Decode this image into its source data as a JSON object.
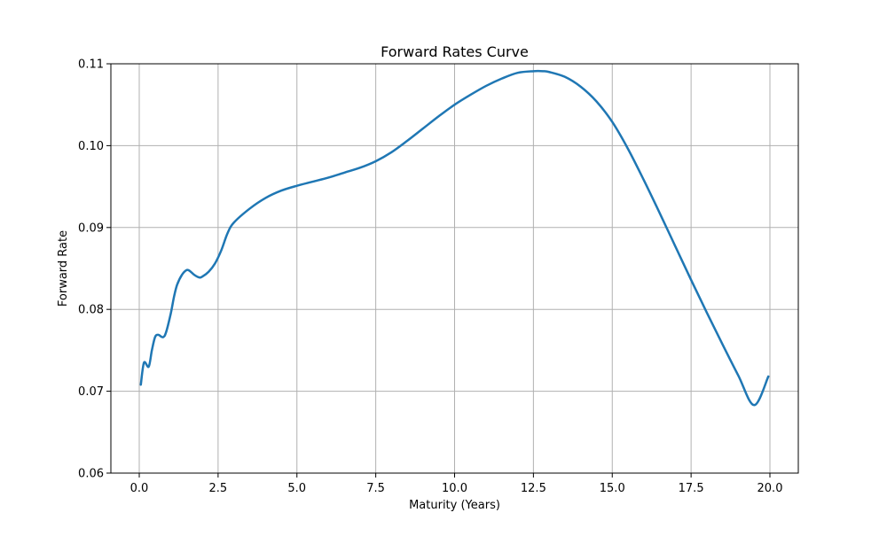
{
  "chart_data": {
    "type": "line",
    "title": "Forward Rates Curve",
    "xlabel": "Maturity (Years)",
    "ylabel": "Forward Rate",
    "xlim": [
      -0.9,
      20.9
    ],
    "ylim": [
      0.06,
      0.11
    ],
    "xticks": [
      0.0,
      2.5,
      5.0,
      7.5,
      10.0,
      12.5,
      15.0,
      17.5,
      20.0
    ],
    "xtick_labels": [
      "0.0",
      "2.5",
      "5.0",
      "7.5",
      "10.0",
      "12.5",
      "15.0",
      "17.5",
      "20.0"
    ],
    "yticks": [
      0.06,
      0.07,
      0.08,
      0.09,
      0.1,
      0.11
    ],
    "ytick_labels": [
      "0.06",
      "0.07",
      "0.08",
      "0.09",
      "0.10",
      "0.11"
    ],
    "grid": true,
    "line_color": "#1f77b4",
    "series": [
      {
        "x": [
          0.05,
          0.15,
          0.3,
          0.4,
          0.5,
          0.6,
          0.75,
          0.85,
          1.0,
          1.1,
          1.2,
          1.35,
          1.5,
          1.6,
          1.75,
          1.9,
          2.0,
          2.2,
          2.4,
          2.6,
          2.8,
          3.0,
          3.5,
          4.0,
          4.5,
          5.0,
          5.5,
          6.0,
          6.5,
          7.0,
          7.5,
          8.0,
          8.5,
          9.0,
          9.5,
          10.0,
          10.5,
          11.0,
          11.5,
          12.0,
          12.5,
          12.8,
          13.0,
          13.5,
          14.0,
          14.5,
          15.0,
          15.5,
          16.0,
          16.5,
          17.0,
          17.5,
          18.0,
          18.5,
          19.0,
          19.5,
          19.95
        ],
        "y": [
          0.0708,
          0.0735,
          0.073,
          0.075,
          0.0766,
          0.0769,
          0.0766,
          0.0772,
          0.0795,
          0.0815,
          0.083,
          0.0842,
          0.0848,
          0.0847,
          0.0842,
          0.0839,
          0.084,
          0.0846,
          0.0856,
          0.0872,
          0.0893,
          0.0906,
          0.0923,
          0.0936,
          0.0945,
          0.0951,
          0.0956,
          0.0961,
          0.0967,
          0.0973,
          0.0981,
          0.0992,
          0.1006,
          0.1021,
          0.1036,
          0.105,
          0.1062,
          0.1073,
          0.1082,
          0.1089,
          0.1091,
          0.1091,
          0.109,
          0.1084,
          0.1072,
          0.1054,
          0.1029,
          0.0996,
          0.0958,
          0.0918,
          0.0877,
          0.0836,
          0.0796,
          0.0757,
          0.0719,
          0.0683,
          0.0718
        ]
      }
    ]
  }
}
